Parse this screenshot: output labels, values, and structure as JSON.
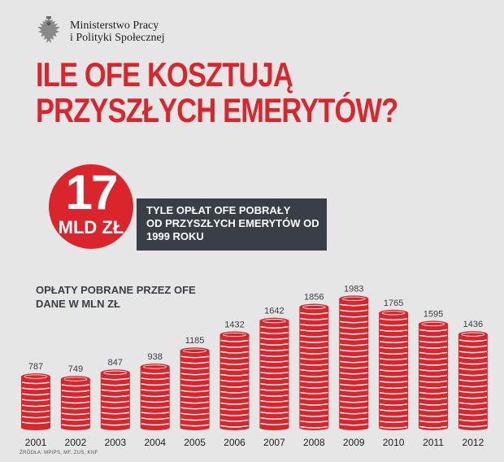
{
  "header": {
    "ministry_line1": "Ministerstwo Pracy",
    "ministry_line2": "i Polityki Społecznej",
    "emblem_icon": "polish-eagle-emblem-icon"
  },
  "title": {
    "line1": "ILE OFE KOSZTUJĄ",
    "line2": "PRZYSZŁYCH EMERYTÓW?"
  },
  "highlight": {
    "number": "17",
    "unit": "MLD ZŁ",
    "text_line1": "TYLE OPŁAT OFE POBRAŁY",
    "text_line2": "OD PRZYSZŁYCH EMERYTÓW OD",
    "text_line3": "1999 ROKU"
  },
  "chart_data": {
    "type": "bar",
    "title_line1": "OPŁATY POBRANE PRZEZ OFE",
    "title_line2": "DANE W MLN ZŁ",
    "categories": [
      "2001",
      "2002",
      "2003",
      "2004",
      "2005",
      "2006",
      "2007",
      "2008",
      "2009",
      "2010",
      "2011",
      "2012"
    ],
    "values": [
      787,
      749,
      847,
      938,
      1185,
      1432,
      1642,
      1856,
      1983,
      1765,
      1595,
      1436
    ],
    "ylim": [
      0,
      2000
    ],
    "style": "stacked coins"
  },
  "footer": {
    "sources": "ŹRÓDŁA: MPIPS, MF, ZUS, KNF"
  },
  "colors": {
    "accent_red": "#d9252b",
    "dark_banner": "#3a3e46",
    "background": "#e6e6e6",
    "coin_stripe": "#ffffff"
  }
}
